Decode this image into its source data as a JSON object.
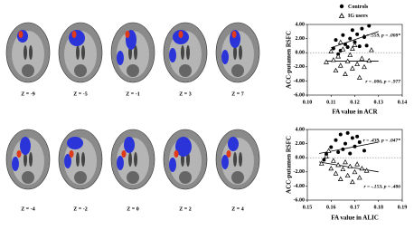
{
  "figure": {
    "rows": [
      [
        "Z = -9",
        "Z = -5",
        "Z = -1",
        "Z = 3",
        "Z = 7"
      ],
      [
        "Z = -4",
        "Z = -2",
        "Z = 0",
        "Z = 2",
        "Z = 4"
      ]
    ]
  },
  "chart_data": [
    {
      "type": "scatter",
      "xlabel": "FA value in ACR",
      "ylabel": "ACC-putamen RSFC",
      "xlim": [
        0.1,
        0.14
      ],
      "ylim": [
        -6,
        4
      ],
      "xticks": [
        {
          "value": 0.1,
          "label": "0.10"
        },
        0.11,
        0.12,
        0.13,
        0.14
      ],
      "yticks": [
        {
          "value": 4,
          "label": "4.00"
        },
        {
          "value": 2,
          "label": "2.00"
        },
        {
          "value": 0,
          "label": "0.00"
        },
        {
          "value": -2,
          "label": "-2.00"
        },
        {
          "value": -4,
          "label": "-4.00"
        },
        {
          "value": -6,
          "label": "-6.00"
        }
      ],
      "zero_line": true,
      "annotations": [
        "r = .559, p = .008*",
        "r = .006, p = .977"
      ],
      "series": [
        {
          "name": "Controls",
          "marker": "circle",
          "color": "#000000",
          "x": [
            0.111,
            0.112,
            0.114,
            0.115,
            0.116,
            0.117,
            0.118,
            0.119,
            0.12,
            0.121,
            0.122,
            0.123,
            0.124,
            0.125,
            0.126,
            0.113
          ],
          "values": [
            0.6,
            1.8,
            0.3,
            2.5,
            1.2,
            0.8,
            2.0,
            3.2,
            1.5,
            2.6,
            0.9,
            3.4,
            2.2,
            1.0,
            3.8,
            -0.2
          ],
          "fit": {
            "x": [
              0.11,
              0.13
            ],
            "values": [
              0.7,
              3.0
            ]
          }
        },
        {
          "name": "IG users",
          "marker": "triangle",
          "color": "#000000",
          "x": [
            0.108,
            0.11,
            0.111,
            0.112,
            0.113,
            0.114,
            0.115,
            0.116,
            0.117,
            0.118,
            0.119,
            0.12,
            0.121,
            0.122,
            0.123,
            0.124,
            0.126,
            0.127,
            0.114,
            0.119
          ],
          "values": [
            -1.3,
            0.2,
            -1.0,
            -2.5,
            -0.5,
            -1.8,
            0.5,
            -3.0,
            -1.2,
            -0.3,
            -2.2,
            1.1,
            -1.6,
            -3.5,
            -0.8,
            -2.0,
            -1.1,
            0.4,
            1.5,
            0.6
          ],
          "fit": {
            "x": [
              0.108,
              0.13
            ],
            "values": [
              -1.2,
              -1.2
            ]
          }
        }
      ]
    },
    {
      "type": "scatter",
      "xlabel": "FA value in ALIC",
      "ylabel": "ACC-putamen RSFC",
      "xlim": [
        0.15,
        0.19
      ],
      "ylim": [
        -6,
        4
      ],
      "xticks": [
        0.15,
        0.16,
        0.17,
        0.18,
        0.19
      ],
      "yticks": [
        {
          "value": 4,
          "label": "4.00"
        },
        {
          "value": 2,
          "label": "2.00"
        },
        {
          "value": 0,
          "label": "0.00"
        },
        {
          "value": -2,
          "label": "-2.00"
        },
        {
          "value": -4,
          "label": "-4.00"
        },
        {
          "value": -6,
          "label": "-6.00"
        }
      ],
      "zero_line": true,
      "annotations": [
        "r = .439, p = .047*",
        "r = -.153, p = .486"
      ],
      "series": [
        {
          "marker": "circle",
          "color": "#000000",
          "x": [
            0.158,
            0.16,
            0.162,
            0.163,
            0.164,
            0.165,
            0.166,
            0.167,
            0.168,
            0.169,
            0.17,
            0.171,
            0.172,
            0.174,
            0.157
          ],
          "values": [
            0.5,
            1.5,
            2.5,
            0.8,
            3.3,
            1.2,
            2.0,
            3.5,
            0.6,
            2.8,
            1.6,
            3.0,
            2.2,
            1.0,
            -0.3
          ],
          "fit": {
            "x": [
              0.155,
              0.18
            ],
            "values": [
              0.6,
              2.2
            ]
          }
        },
        {
          "marker": "triangle",
          "color": "#000000",
          "x": [
            0.156,
            0.158,
            0.16,
            0.161,
            0.162,
            0.163,
            0.164,
            0.165,
            0.166,
            0.167,
            0.168,
            0.169,
            0.17,
            0.171,
            0.172,
            0.173,
            0.175,
            0.159
          ],
          "values": [
            -0.8,
            0.2,
            -1.5,
            -0.4,
            -2.2,
            -1.0,
            -3.0,
            -1.6,
            -0.6,
            -2.5,
            -1.2,
            -3.4,
            -2.0,
            -0.9,
            -2.8,
            -1.5,
            -1.8,
            1.0
          ],
          "fit": {
            "x": [
              0.155,
              0.18
            ],
            "values": [
              -0.6,
              -2.0
            ]
          }
        }
      ]
    }
  ]
}
